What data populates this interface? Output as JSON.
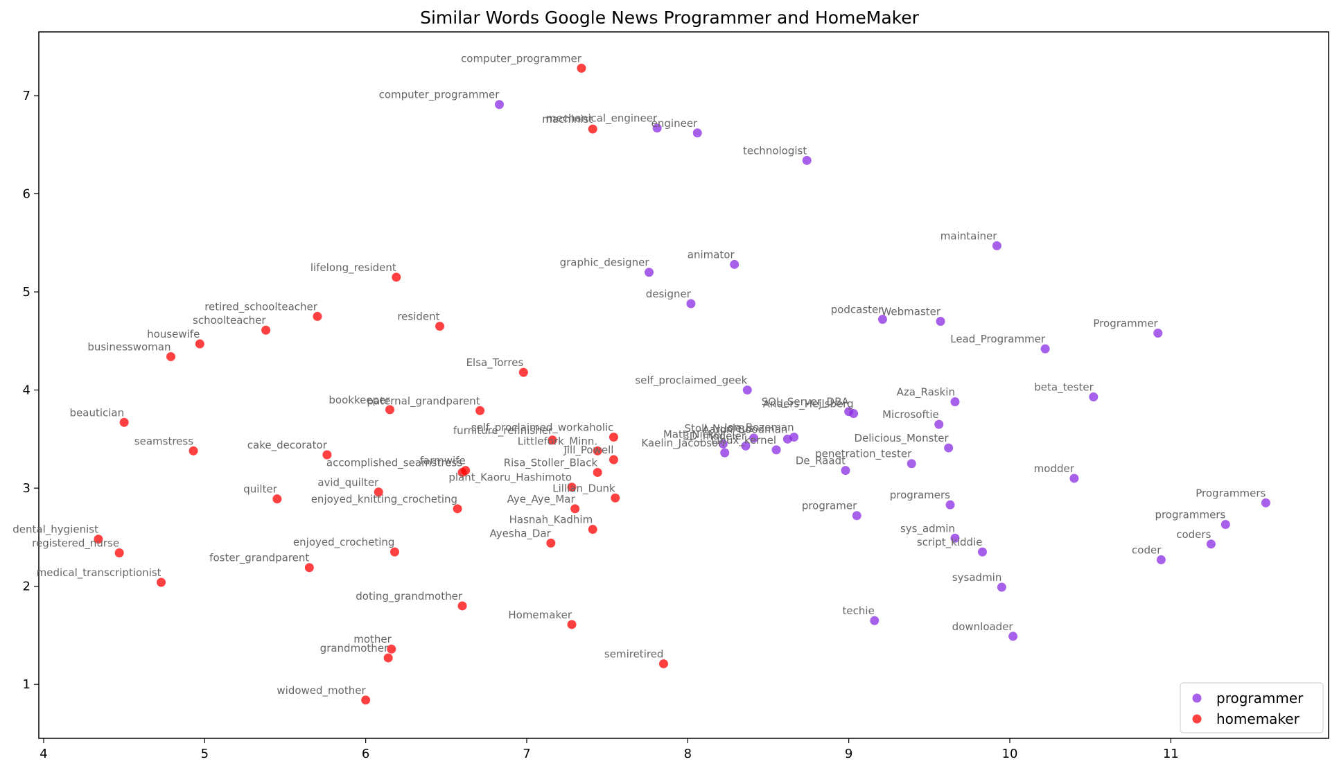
{
  "chart_data": {
    "type": "scatter",
    "title": "Similar Words Google News Programmer and HomeMaker",
    "xlabel": "",
    "ylabel": "",
    "xlim": [
      3.97,
      11.98
    ],
    "ylim": [
      0.45,
      7.65
    ],
    "xticks": [
      "4",
      "5",
      "6",
      "7",
      "8",
      "9",
      "10",
      "11"
    ],
    "yticks": [
      "1",
      "2",
      "3",
      "4",
      "5",
      "6",
      "7"
    ],
    "grid": false,
    "legend_position": "lower-right",
    "series": [
      {
        "name": "programmer",
        "color": "#8a2be2",
        "points": [
          {
            "x": 6.83,
            "y": 6.91,
            "label": "computer_programmer"
          },
          {
            "x": 7.81,
            "y": 6.67,
            "label": "mechanical_engineer"
          },
          {
            "x": 8.06,
            "y": 6.62,
            "label": "engineer"
          },
          {
            "x": 8.74,
            "y": 6.34,
            "label": "technologist"
          },
          {
            "x": 9.92,
            "y": 5.47,
            "label": "maintainer"
          },
          {
            "x": 8.29,
            "y": 5.28,
            "label": "animator"
          },
          {
            "x": 7.76,
            "y": 5.2,
            "label": "graphic_designer"
          },
          {
            "x": 8.02,
            "y": 4.88,
            "label": "designer"
          },
          {
            "x": 9.21,
            "y": 4.72,
            "label": "podcaster"
          },
          {
            "x": 9.57,
            "y": 4.7,
            "label": "Webmaster"
          },
          {
            "x": 10.92,
            "y": 4.58,
            "label": "Programmer"
          },
          {
            "x": 10.22,
            "y": 4.42,
            "label": "Lead_Programmer"
          },
          {
            "x": 8.37,
            "y": 4.0,
            "label": "self_proclaimed_geek"
          },
          {
            "x": 9.66,
            "y": 3.88,
            "label": "Aza_Raskin"
          },
          {
            "x": 10.52,
            "y": 3.93,
            "label": "beta_tester"
          },
          {
            "x": 9.0,
            "y": 3.78,
            "label": "SQL_Server_DBA"
          },
          {
            "x": 9.03,
            "y": 3.76,
            "label": "Anders_Hejlsberg"
          },
          {
            "x": 9.56,
            "y": 3.65,
            "label": "Microsoftie"
          },
          {
            "x": 8.62,
            "y": 3.5,
            "label": "Aaron_Boodman"
          },
          {
            "x": 8.66,
            "y": 3.52,
            "label": "Jon_Bozeman"
          },
          {
            "x": 8.41,
            "y": 3.51,
            "label": "Stoll_Nucleus"
          },
          {
            "x": 8.36,
            "y": 3.43,
            "label": "3D_modeler"
          },
          {
            "x": 8.22,
            "y": 3.45,
            "label": "Matt_Nickel"
          },
          {
            "x": 8.55,
            "y": 3.39,
            "label": "Linux_kernel"
          },
          {
            "x": 8.23,
            "y": 3.36,
            "label": "Kaelin_Jacobson"
          },
          {
            "x": 9.62,
            "y": 3.41,
            "label": "Delicious_Monster"
          },
          {
            "x": 9.39,
            "y": 3.25,
            "label": "penetration_tester"
          },
          {
            "x": 8.98,
            "y": 3.18,
            "label": "De_Raadt"
          },
          {
            "x": 10.4,
            "y": 3.1,
            "label": "modder"
          },
          {
            "x": 11.59,
            "y": 2.85,
            "label": "Programmers"
          },
          {
            "x": 9.63,
            "y": 2.83,
            "label": "programers"
          },
          {
            "x": 9.05,
            "y": 2.72,
            "label": "programer"
          },
          {
            "x": 11.34,
            "y": 2.63,
            "label": "programmers"
          },
          {
            "x": 9.66,
            "y": 2.49,
            "label": "sys_admin"
          },
          {
            "x": 11.25,
            "y": 2.43,
            "label": "coders"
          },
          {
            "x": 9.83,
            "y": 2.35,
            "label": "script_kiddie"
          },
          {
            "x": 10.94,
            "y": 2.27,
            "label": "coder"
          },
          {
            "x": 9.95,
            "y": 1.99,
            "label": "sysadmin"
          },
          {
            "x": 9.16,
            "y": 1.65,
            "label": "techie"
          },
          {
            "x": 10.02,
            "y": 1.49,
            "label": "downloader"
          }
        ]
      },
      {
        "name": "homemaker",
        "color": "#ff0000",
        "points": [
          {
            "x": 7.34,
            "y": 7.28,
            "label": "computer_programmer"
          },
          {
            "x": 7.41,
            "y": 6.66,
            "label": "machinist"
          },
          {
            "x": 6.19,
            "y": 5.15,
            "label": "lifelong_resident"
          },
          {
            "x": 5.7,
            "y": 4.75,
            "label": "retired_schoolteacher"
          },
          {
            "x": 6.46,
            "y": 4.65,
            "label": "resident"
          },
          {
            "x": 5.38,
            "y": 4.61,
            "label": "schoolteacher"
          },
          {
            "x": 4.97,
            "y": 4.47,
            "label": "housewife"
          },
          {
            "x": 4.79,
            "y": 4.34,
            "label": "businesswoman"
          },
          {
            "x": 6.98,
            "y": 4.18,
            "label": "Elsa_Torres"
          },
          {
            "x": 6.15,
            "y": 3.8,
            "label": "bookkeeper"
          },
          {
            "x": 6.71,
            "y": 3.79,
            "label": "paternal_grandparent"
          },
          {
            "x": 4.5,
            "y": 3.67,
            "label": "beautician"
          },
          {
            "x": 7.54,
            "y": 3.52,
            "label": "self_proclaimed_workaholic"
          },
          {
            "x": 7.16,
            "y": 3.49,
            "label": "furniture_refinisher"
          },
          {
            "x": 4.93,
            "y": 3.38,
            "label": "seamstress"
          },
          {
            "x": 7.44,
            "y": 3.38,
            "label": "Littlefork_Minn."
          },
          {
            "x": 5.76,
            "y": 3.34,
            "label": "cake_decorator"
          },
          {
            "x": 7.54,
            "y": 3.29,
            "label": "Jill_Powell"
          },
          {
            "x": 6.62,
            "y": 3.18,
            "label": "farmwife"
          },
          {
            "x": 6.6,
            "y": 3.16,
            "label": "accomplished_seamstress"
          },
          {
            "x": 7.44,
            "y": 3.16,
            "label": "Risa_Stoller_Black"
          },
          {
            "x": 7.28,
            "y": 3.01,
            "label": "plant_Kaoru_Hashimoto"
          },
          {
            "x": 6.08,
            "y": 2.96,
            "label": "avid_quilter"
          },
          {
            "x": 5.45,
            "y": 2.89,
            "label": "quilter"
          },
          {
            "x": 7.55,
            "y": 2.9,
            "label": "Lillian_Dunk"
          },
          {
            "x": 6.57,
            "y": 2.79,
            "label": "enjoyed_knitting_crocheting"
          },
          {
            "x": 7.3,
            "y": 2.79,
            "label": "Aye_Aye_Mar"
          },
          {
            "x": 7.41,
            "y": 2.58,
            "label": "Hasnah_Kadhim"
          },
          {
            "x": 4.34,
            "y": 2.48,
            "label": "dental_hygienist"
          },
          {
            "x": 7.15,
            "y": 2.44,
            "label": "Ayesha_Dar"
          },
          {
            "x": 6.18,
            "y": 2.35,
            "label": "enjoyed_crocheting"
          },
          {
            "x": 4.47,
            "y": 2.34,
            "label": "registered_nurse"
          },
          {
            "x": 5.65,
            "y": 2.19,
            "label": "foster_grandparent"
          },
          {
            "x": 4.73,
            "y": 2.04,
            "label": "medical_transcriptionist"
          },
          {
            "x": 6.6,
            "y": 1.8,
            "label": "doting_grandmother"
          },
          {
            "x": 7.28,
            "y": 1.61,
            "label": "Homemaker"
          },
          {
            "x": 6.16,
            "y": 1.36,
            "label": "mother"
          },
          {
            "x": 6.14,
            "y": 1.27,
            "label": "grandmother"
          },
          {
            "x": 7.85,
            "y": 1.21,
            "label": "semiretired"
          },
          {
            "x": 6.0,
            "y": 0.84,
            "label": "widowed_mother"
          }
        ]
      }
    ]
  }
}
